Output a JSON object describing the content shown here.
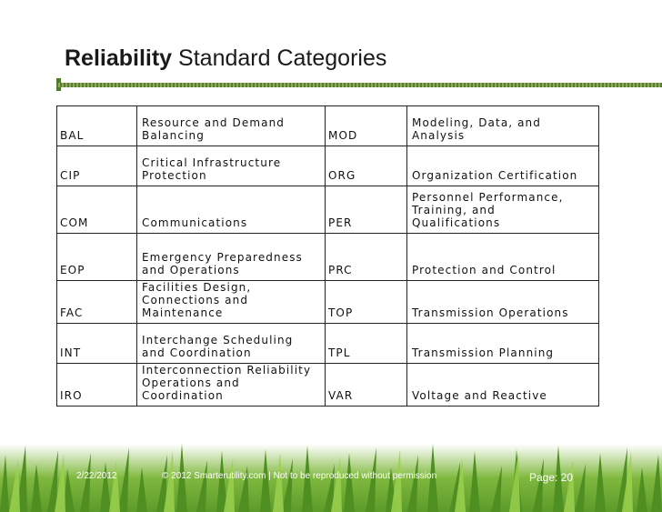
{
  "slide": {
    "title_bold": "Reliability",
    "title_rest": " Standard Categories"
  },
  "rows": [
    {
      "code1": "BAL",
      "name1": "Resource and Demand\nBalancing",
      "code2": "MOD",
      "name2": "Modeling, Data, and\nAnalysis"
    },
    {
      "code1": "CIP",
      "name1": "Critical Infrastructure\nProtection",
      "code2": "ORG",
      "name2": "Organization Certification"
    },
    {
      "code1": "COM",
      "name1": "Communications",
      "code2": "PER",
      "name2": "Personnel Performance,\nTraining, and\nQualifications"
    },
    {
      "code1": "EOP",
      "name1": "Emergency Preparedness\nand Operations",
      "code2": "PRC",
      "name2": "Protection and Control"
    },
    {
      "code1": "FAC",
      "name1": "Facilities Design,\nConnections and\nMaintenance",
      "code2": "TOP",
      "name2": "Transmission Operations"
    },
    {
      "code1": "INT",
      "name1": "Interchange Scheduling\nand Coordination",
      "code2": "TPL",
      "name2": "Transmission Planning"
    },
    {
      "code1": "IRO",
      "name1": "Interconnection Reliability\nOperations and\nCoordination",
      "code2": "VAR",
      "name2": "Voltage and Reactive"
    }
  ],
  "footer": {
    "date": "2/22/2012",
    "copyright": "© 2012 Smarterutility.com | Not to be reproduced without permission",
    "page": "Page: 20"
  }
}
